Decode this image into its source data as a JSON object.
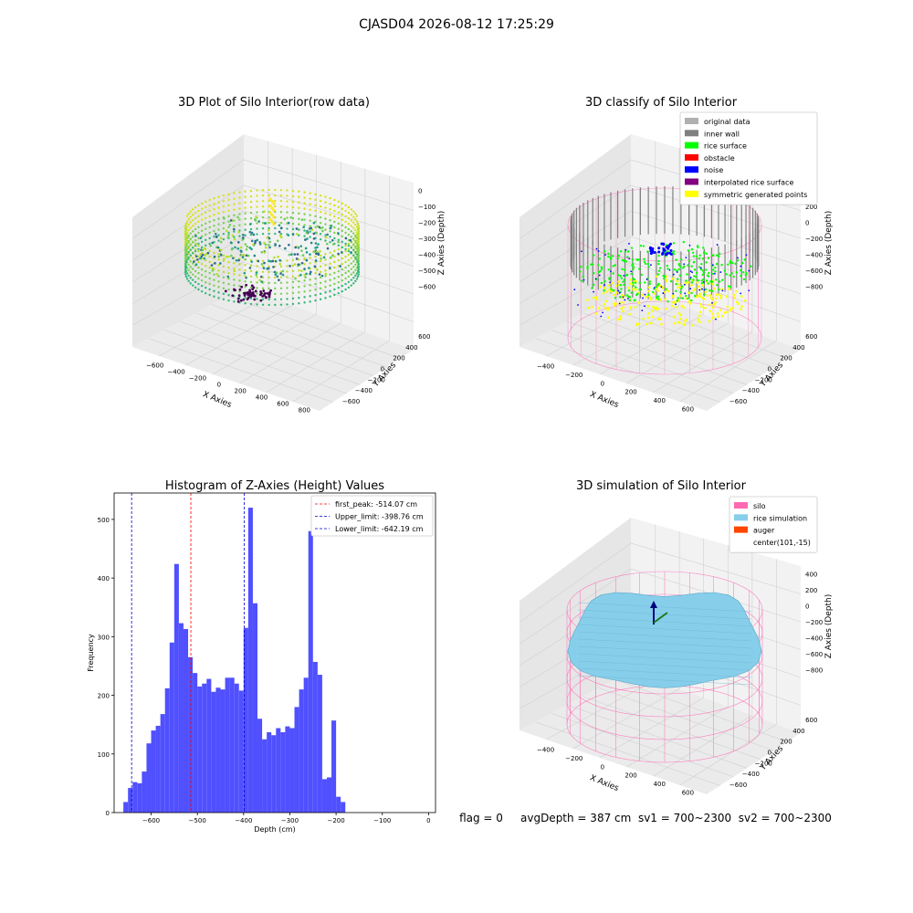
{
  "figure": {
    "suptitle": "CJASD04 2026-08-12 17:25:29",
    "status_line": "flag = 0     avgDepth = 387 cm  sv1 = 700~2300  sv2 = 700~2300"
  },
  "colors": {
    "hist_bar": "#5050ff",
    "first_peak_line": "#ff0000",
    "limit_lines": "#0000cc",
    "pane": "#f2f2f2",
    "pane_side": "#e6e6e6",
    "grid": "#d0d0d0",
    "silo_wire": "#ff69b4",
    "rice_sim": "#87ceeb",
    "gray_wall": "#808080",
    "rice_surface": "#00ff00",
    "noise": "#0000ff",
    "yellow": "#ffff00"
  },
  "chart_data": [
    {
      "type": "scatter3d",
      "title": "3D Plot of Silo Interior(row data)",
      "xlabel": "X Axies",
      "ylabel": "Y Axies",
      "zlabel": "Z Axies (Depth)",
      "xticks": [
        "−600",
        "−400",
        "−200",
        "0",
        "200",
        "400",
        "600",
        "800"
      ],
      "yticks": [
        "−600",
        "−400",
        "−200",
        "0",
        "200",
        "400",
        "600"
      ],
      "zticks": [
        "0",
        "−100",
        "−200",
        "−300",
        "−400",
        "−500",
        "−600"
      ],
      "colormap": "viridis"
    },
    {
      "type": "scatter3d",
      "title": "3D classify of Silo Interior",
      "xlabel": "X Axies",
      "ylabel": "Y Axies",
      "zlabel": "Z Axies (Depth)",
      "xticks": [
        "−400",
        "−200",
        "0",
        "200",
        "400",
        "600"
      ],
      "yticks": [
        "−600",
        "−400",
        "−200",
        "0",
        "200",
        "400",
        "600"
      ],
      "zticks": [
        "400",
        "200",
        "0",
        "−200",
        "−400",
        "−600",
        "−800"
      ],
      "legend": [
        {
          "label": "original data",
          "color": "#b0b0b0"
        },
        {
          "label": "inner wall",
          "color": "#808080"
        },
        {
          "label": "rice surface",
          "color": "#00ff00"
        },
        {
          "label": "obstacle",
          "color": "#ff0000"
        },
        {
          "label": "noise",
          "color": "#0000ff"
        },
        {
          "label": "interpolated rice surface",
          "color": "#800080"
        },
        {
          "label": "symmetric generated points",
          "color": "#ffff00"
        }
      ]
    },
    {
      "type": "bar",
      "title": "Histogram of Z-Axies (Height) Values",
      "xlabel": "Depth (cm)",
      "ylabel": "Frequency",
      "xlim": [
        -680,
        15
      ],
      "ylim": [
        0,
        545
      ],
      "xticks": [
        -600,
        -500,
        -400,
        -300,
        -200,
        -100,
        0
      ],
      "yticks": [
        0,
        100,
        200,
        300,
        400,
        500
      ],
      "bin_start": -660,
      "bin_width": 10,
      "values": [
        18,
        42,
        52,
        50,
        70,
        118,
        140,
        148,
        168,
        212,
        290,
        424,
        323,
        313,
        265,
        238,
        215,
        220,
        228,
        206,
        213,
        210,
        230,
        230,
        220,
        208,
        315,
        520,
        357,
        160,
        125,
        137,
        132,
        144,
        137,
        147,
        144,
        180,
        210,
        230,
        480,
        257,
        235,
        57,
        60,
        157,
        27,
        18
      ],
      "vlines": [
        {
          "label": "first_peak: -514.07 cm",
          "x": -514.07,
          "color": "#ff0000"
        },
        {
          "label": "Upper_limit: -398.76 cm",
          "x": -398.76,
          "color": "#0000cc"
        },
        {
          "label": "Lower_limit: -642.19 cm",
          "x": -642.19,
          "color": "#0000cc"
        }
      ]
    },
    {
      "type": "surface3d",
      "title": "3D simulation of Silo Interior",
      "xlabel": "X Axies",
      "ylabel": "Y Axies",
      "zlabel": "Z Axies (Depth)",
      "xticks": [
        "−400",
        "−200",
        "0",
        "200",
        "400",
        "600"
      ],
      "yticks": [
        "−600",
        "−400",
        "−200",
        "0",
        "200",
        "400",
        "600"
      ],
      "zticks": [
        "400",
        "200",
        "0",
        "−200",
        "−400",
        "−600",
        "−800"
      ],
      "legend": [
        {
          "label": "silo",
          "color": "#ff69b4"
        },
        {
          "label": "rice simulation",
          "color": "#87ceeb"
        },
        {
          "label": "auger",
          "color": "#ff4500"
        },
        {
          "label": "center(101,-15)",
          "color": ""
        }
      ]
    }
  ]
}
